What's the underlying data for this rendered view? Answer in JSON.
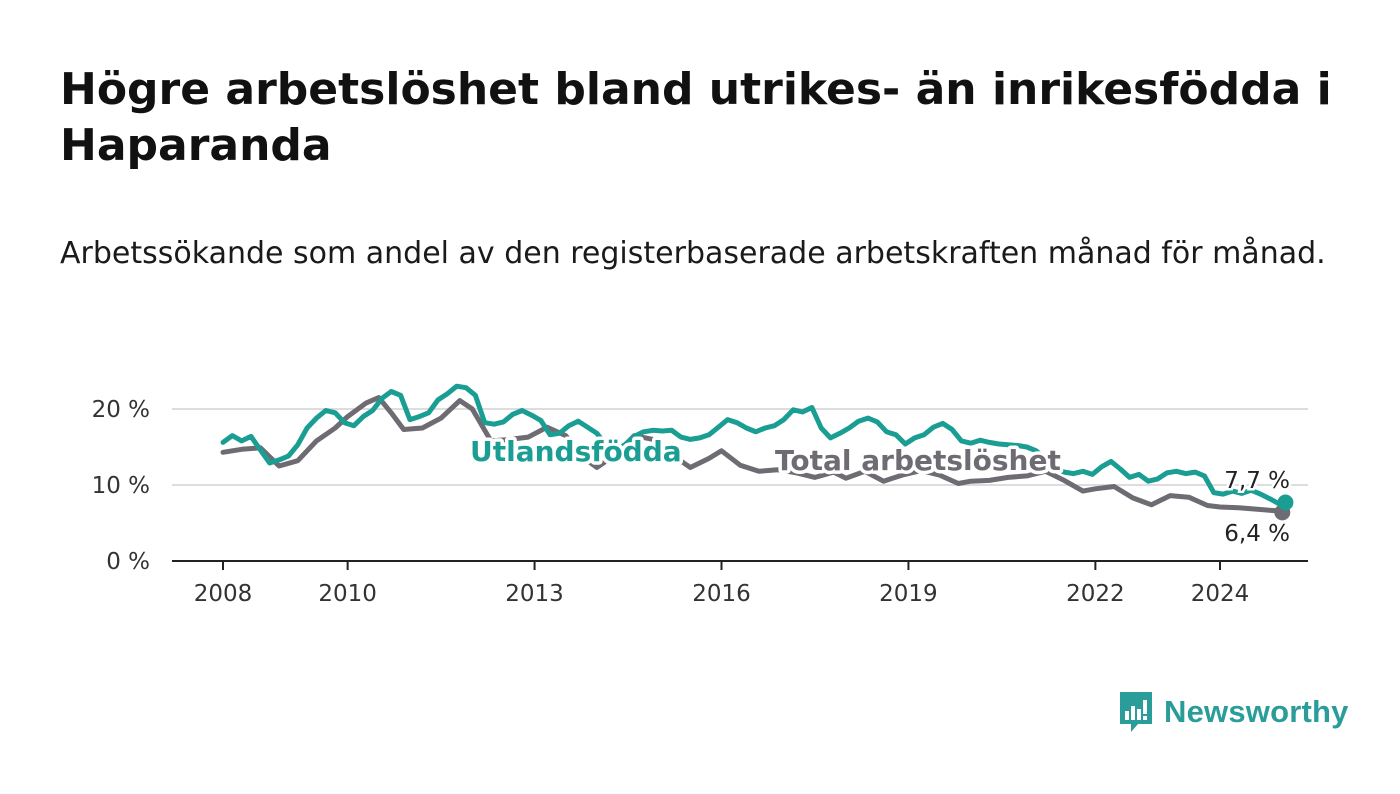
{
  "title": "Högre arbetslöshet bland utrikes- än inrikesfödda i Haparanda",
  "subtitle": "Arbetssökande som andel av den registerbaserade arbetskraften månad för månad.",
  "brand": {
    "name": "Newsworthy",
    "icon": "newsworthy-logo-icon",
    "color": "#2a9d9b"
  },
  "chart_data": {
    "type": "line",
    "title": "Högre arbetslöshet bland utrikes- än inrikesfödda i Haparanda",
    "subtitle": "Arbetssökande som andel av den registerbaserade arbetskraften månad för månad.",
    "xlabel": "",
    "ylabel": "",
    "xlim": [
      2008.0,
      2025.3
    ],
    "ylim": [
      0,
      20
    ],
    "y_ticks": [
      0,
      10,
      20
    ],
    "y_tick_labels": [
      "0 %",
      "10 %",
      "20 %"
    ],
    "x_ticks": [
      2008,
      2010,
      2013,
      2016,
      2019,
      2022,
      2024
    ],
    "x_tick_labels": [
      "2008",
      "2010",
      "2013",
      "2016",
      "2019",
      "2022",
      "2024"
    ],
    "grid": "horizontal",
    "legend": "inline labels",
    "series": [
      {
        "name": "Total arbetslöshet",
        "color": "#6e6b72",
        "end_label": "6,4 %",
        "points": [
          [
            2008.0,
            14.3
          ],
          [
            2008.3,
            14.7
          ],
          [
            2008.6,
            14.9
          ],
          [
            2008.9,
            12.5
          ],
          [
            2009.2,
            13.2
          ],
          [
            2009.5,
            15.8
          ],
          [
            2009.8,
            17.5
          ],
          [
            2010.0,
            19.0
          ],
          [
            2010.3,
            20.8
          ],
          [
            2010.5,
            21.5
          ],
          [
            2010.7,
            19.5
          ],
          [
            2010.9,
            17.3
          ],
          [
            2011.2,
            17.5
          ],
          [
            2011.5,
            18.8
          ],
          [
            2011.8,
            21.1
          ],
          [
            2012.0,
            20.0
          ],
          [
            2012.3,
            15.8
          ],
          [
            2012.6,
            16.0
          ],
          [
            2012.9,
            16.3
          ],
          [
            2013.2,
            17.6
          ],
          [
            2013.5,
            16.5
          ],
          [
            2013.8,
            13.5
          ],
          [
            2014.0,
            12.3
          ],
          [
            2014.3,
            14.0
          ],
          [
            2014.6,
            16.5
          ],
          [
            2014.9,
            16.0
          ],
          [
            2015.2,
            14.0
          ],
          [
            2015.5,
            12.3
          ],
          [
            2015.8,
            13.5
          ],
          [
            2016.0,
            14.5
          ],
          [
            2016.3,
            12.6
          ],
          [
            2016.6,
            11.8
          ],
          [
            2016.9,
            12.0
          ],
          [
            2017.2,
            11.6
          ],
          [
            2017.5,
            11.0
          ],
          [
            2017.8,
            11.7
          ],
          [
            2018.0,
            10.9
          ],
          [
            2018.3,
            11.8
          ],
          [
            2018.6,
            10.5
          ],
          [
            2018.9,
            11.3
          ],
          [
            2019.2,
            11.9
          ],
          [
            2019.5,
            11.3
          ],
          [
            2019.8,
            10.2
          ],
          [
            2020.0,
            10.5
          ],
          [
            2020.3,
            10.6
          ],
          [
            2020.6,
            11.0
          ],
          [
            2020.9,
            11.2
          ],
          [
            2021.2,
            11.8
          ],
          [
            2021.5,
            10.6
          ],
          [
            2021.8,
            9.2
          ],
          [
            2022.0,
            9.5
          ],
          [
            2022.3,
            9.8
          ],
          [
            2022.6,
            8.3
          ],
          [
            2022.9,
            7.4
          ],
          [
            2023.2,
            8.6
          ],
          [
            2023.5,
            8.4
          ],
          [
            2023.8,
            7.3
          ],
          [
            2024.0,
            7.1
          ],
          [
            2024.3,
            7.0
          ],
          [
            2024.6,
            6.8
          ],
          [
            2024.9,
            6.6
          ],
          [
            2025.0,
            6.4
          ]
        ]
      },
      {
        "name": "Utlandsfödda",
        "color": "#1a9e94",
        "end_label": "7,7 %",
        "points": [
          [
            2008.0,
            15.6
          ],
          [
            2008.15,
            16.5
          ],
          [
            2008.3,
            15.8
          ],
          [
            2008.45,
            16.4
          ],
          [
            2008.6,
            14.6
          ],
          [
            2008.75,
            12.9
          ],
          [
            2008.9,
            13.3
          ],
          [
            2009.05,
            13.8
          ],
          [
            2009.2,
            15.3
          ],
          [
            2009.35,
            17.5
          ],
          [
            2009.5,
            18.8
          ],
          [
            2009.65,
            19.8
          ],
          [
            2009.8,
            19.5
          ],
          [
            2009.95,
            18.2
          ],
          [
            2010.1,
            17.8
          ],
          [
            2010.25,
            19.0
          ],
          [
            2010.4,
            19.8
          ],
          [
            2010.55,
            21.4
          ],
          [
            2010.7,
            22.3
          ],
          [
            2010.85,
            21.8
          ],
          [
            2011.0,
            18.6
          ],
          [
            2011.15,
            19.0
          ],
          [
            2011.3,
            19.5
          ],
          [
            2011.45,
            21.2
          ],
          [
            2011.6,
            22.0
          ],
          [
            2011.75,
            23.0
          ],
          [
            2011.9,
            22.8
          ],
          [
            2012.05,
            21.8
          ],
          [
            2012.2,
            18.2
          ],
          [
            2012.35,
            18.0
          ],
          [
            2012.5,
            18.3
          ],
          [
            2012.65,
            19.3
          ],
          [
            2012.8,
            19.8
          ],
          [
            2012.95,
            19.2
          ],
          [
            2013.1,
            18.5
          ],
          [
            2013.25,
            16.6
          ],
          [
            2013.4,
            16.8
          ],
          [
            2013.55,
            17.8
          ],
          [
            2013.7,
            18.4
          ],
          [
            2013.85,
            17.6
          ],
          [
            2014.0,
            16.8
          ],
          [
            2014.15,
            15.2
          ],
          [
            2014.3,
            14.5
          ],
          [
            2014.45,
            15.3
          ],
          [
            2014.6,
            16.4
          ],
          [
            2014.75,
            17.0
          ],
          [
            2014.9,
            17.2
          ],
          [
            2015.05,
            17.1
          ],
          [
            2015.2,
            17.2
          ],
          [
            2015.35,
            16.3
          ],
          [
            2015.5,
            16.0
          ],
          [
            2015.65,
            16.2
          ],
          [
            2015.8,
            16.6
          ],
          [
            2015.95,
            17.6
          ],
          [
            2016.1,
            18.6
          ],
          [
            2016.25,
            18.2
          ],
          [
            2016.4,
            17.5
          ],
          [
            2016.55,
            17.0
          ],
          [
            2016.7,
            17.5
          ],
          [
            2016.85,
            17.8
          ],
          [
            2017.0,
            18.6
          ],
          [
            2017.15,
            19.9
          ],
          [
            2017.3,
            19.6
          ],
          [
            2017.45,
            20.2
          ],
          [
            2017.6,
            17.5
          ],
          [
            2017.75,
            16.2
          ],
          [
            2017.9,
            16.8
          ],
          [
            2018.05,
            17.5
          ],
          [
            2018.2,
            18.4
          ],
          [
            2018.35,
            18.8
          ],
          [
            2018.5,
            18.3
          ],
          [
            2018.65,
            17.0
          ],
          [
            2018.8,
            16.6
          ],
          [
            2018.95,
            15.4
          ],
          [
            2019.1,
            16.2
          ],
          [
            2019.25,
            16.6
          ],
          [
            2019.4,
            17.6
          ],
          [
            2019.55,
            18.1
          ],
          [
            2019.7,
            17.3
          ],
          [
            2019.85,
            15.8
          ],
          [
            2020.0,
            15.5
          ],
          [
            2020.15,
            15.9
          ],
          [
            2020.3,
            15.6
          ],
          [
            2020.45,
            15.4
          ],
          [
            2020.6,
            15.3
          ],
          [
            2020.75,
            15.2
          ],
          [
            2020.9,
            15.0
          ],
          [
            2021.05,
            14.5
          ],
          [
            2021.2,
            13.4
          ],
          [
            2021.35,
            12.2
          ],
          [
            2021.5,
            11.7
          ],
          [
            2021.65,
            11.5
          ],
          [
            2021.8,
            11.8
          ],
          [
            2021.95,
            11.4
          ],
          [
            2022.1,
            12.4
          ],
          [
            2022.25,
            13.1
          ],
          [
            2022.4,
            12.1
          ],
          [
            2022.55,
            11.0
          ],
          [
            2022.7,
            11.4
          ],
          [
            2022.85,
            10.5
          ],
          [
            2023.0,
            10.8
          ],
          [
            2023.15,
            11.6
          ],
          [
            2023.3,
            11.8
          ],
          [
            2023.45,
            11.5
          ],
          [
            2023.6,
            11.7
          ],
          [
            2023.75,
            11.2
          ],
          [
            2023.9,
            9.0
          ],
          [
            2024.05,
            8.8
          ],
          [
            2024.2,
            9.2
          ],
          [
            2024.35,
            8.9
          ],
          [
            2024.5,
            9.3
          ],
          [
            2024.65,
            8.8
          ],
          [
            2024.8,
            8.2
          ],
          [
            2024.95,
            7.5
          ],
          [
            2025.05,
            7.7
          ]
        ]
      }
    ]
  }
}
